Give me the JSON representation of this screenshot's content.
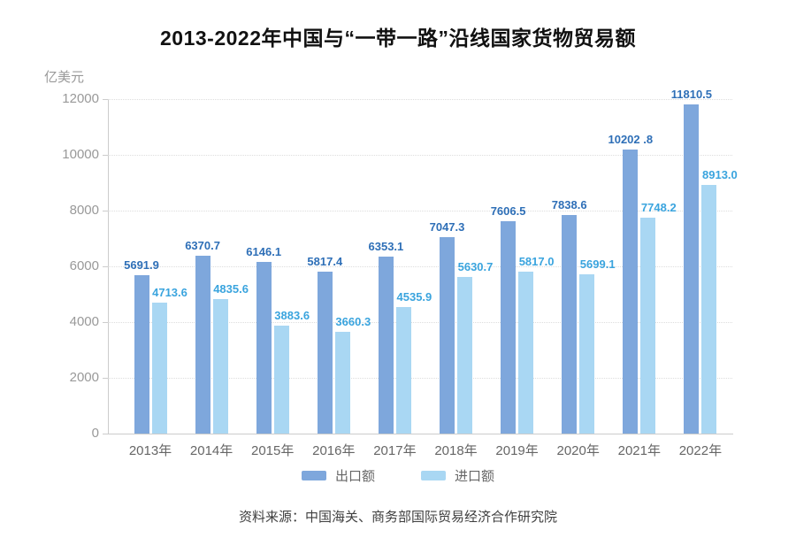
{
  "title": "2013-2022年中国与“一带一路”沿线国家货物贸易额",
  "unit_label": "亿美元",
  "source": "资料来源：中国海关、商务部国际贸易经济合作研究院",
  "colors": {
    "export_bar": "#7EA7DC",
    "import_bar": "#A9D7F3",
    "export_value_text": "#2E6FB7",
    "import_value_text": "#3AA4DE",
    "axis_line": "#cccccc",
    "grid_line": "#dddddd",
    "axis_text": "#999999",
    "category_text": "#666666"
  },
  "legend": [
    {
      "label": "出口额",
      "color": "#7EA7DC"
    },
    {
      "label": "进口额",
      "color": "#A9D7F3"
    }
  ],
  "chart_data": {
    "type": "bar",
    "title": "2013-2022年中国与“一带一路”沿线国家货物贸易额",
    "ylabel": "亿美元",
    "xlabel": "",
    "ylim": [
      0,
      12000
    ],
    "y_ticks": [
      0,
      2000,
      4000,
      6000,
      8000,
      10000,
      12000
    ],
    "grid": "horizontal dotted",
    "legend_position": "bottom",
    "categories": [
      "2013年",
      "2014年",
      "2015年",
      "2016年",
      "2017年",
      "2018年",
      "2019年",
      "2020年",
      "2021年",
      "2022年"
    ],
    "series": [
      {
        "name": "出口额",
        "color": "#7EA7DC",
        "label_color": "#2E6FB7",
        "values": [
          5691.9,
          6370.7,
          6146.1,
          5817.4,
          6353.1,
          7047.3,
          7606.5,
          7838.6,
          10202.8,
          11810.5
        ],
        "display_labels": [
          "5691.9",
          "6370.7",
          "6146.1",
          "5817.4",
          "6353.1",
          "7047.3",
          "7606.5",
          "7838.6",
          "10202 .8",
          "11810.5"
        ]
      },
      {
        "name": "进口额",
        "color": "#A9D7F3",
        "label_color": "#3AA4DE",
        "values": [
          4713.6,
          4835.6,
          3883.6,
          3660.3,
          4535.9,
          5630.7,
          5817.0,
          5699.1,
          7748.2,
          8913.0
        ],
        "display_labels": [
          "4713.6",
          "4835.6",
          "3883.6",
          "3660.3",
          "4535.9",
          "5630.7",
          "5817.0",
          "5699.1",
          "7748.2",
          "8913.0"
        ]
      }
    ]
  }
}
